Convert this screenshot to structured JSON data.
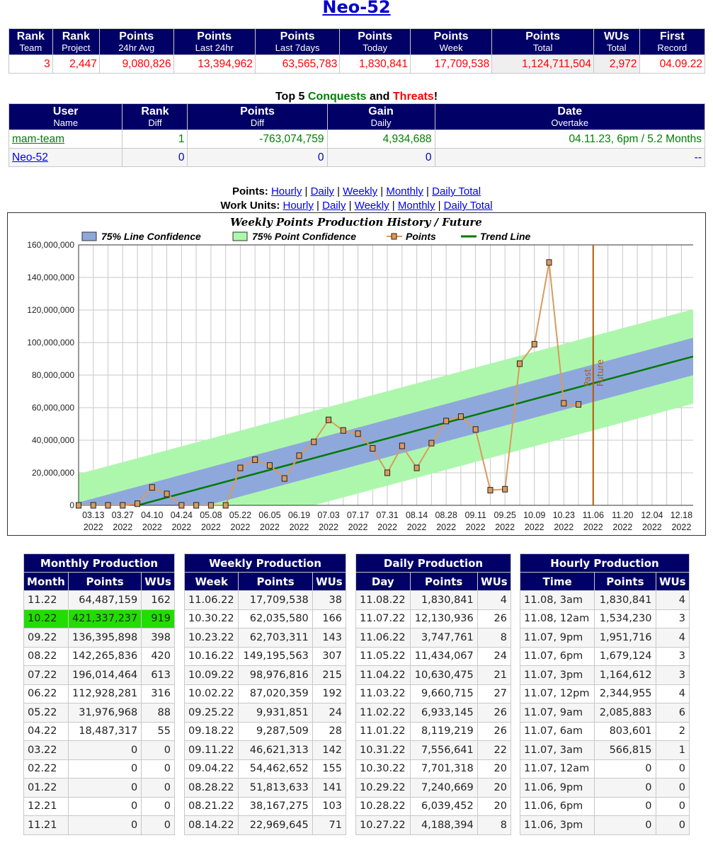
{
  "title": "Neo-52",
  "stats": {
    "headers": [
      [
        "Rank",
        "Team"
      ],
      [
        "Rank",
        "Project"
      ],
      [
        "Points",
        "24hr Avg"
      ],
      [
        "Points",
        "Last 24hr"
      ],
      [
        "Points",
        "Last 7days"
      ],
      [
        "Points",
        "Today"
      ],
      [
        "Points",
        "Week"
      ],
      [
        "Points",
        "Total"
      ],
      [
        "WUs",
        "Total"
      ],
      [
        "First",
        "Record"
      ]
    ],
    "values": [
      "3",
      "2,447",
      "9,080,826",
      "13,394,962",
      "63,565,783",
      "1,830,841",
      "17,709,538",
      "1,124,711,504",
      "2,972",
      "04.09.22"
    ]
  },
  "conquests": {
    "title": {
      "a": "Top 5 ",
      "b": "Conquests",
      "c": " and ",
      "d": "Threats",
      "e": "!"
    },
    "headers": [
      [
        "User",
        "Name"
      ],
      [
        "Rank",
        "Diff"
      ],
      [
        "Points",
        "Diff"
      ],
      [
        "Gain",
        "Daily"
      ],
      [
        "Date",
        "Overtake"
      ]
    ],
    "rows": [
      [
        "mam-team",
        "1",
        "-763,074,759",
        "4,934,688",
        "04.11.23, 6pm / 5.2 Months"
      ],
      [
        "Neo-52",
        "0",
        "0",
        "0",
        "--"
      ]
    ]
  },
  "links": {
    "points_label": "Points:",
    "wu_label": "Work Units:",
    "items": [
      "Hourly",
      "Daily",
      "Weekly",
      "Monthly",
      "Daily Total"
    ],
    "sep": "|"
  },
  "chart_data": {
    "type": "line",
    "title": "Weekly Points Production History / Future",
    "legend": [
      "75% Line Confidence",
      "75% Point Confidence",
      "Points",
      "Trend Line"
    ],
    "legend_position": "top",
    "ylim": [
      0,
      160000000
    ],
    "yticks": [
      "0",
      "20,000,000",
      "40,000,000",
      "60,000,000",
      "80,000,000",
      "100,000,000",
      "120,000,000",
      "140,000,000",
      "160,000,000"
    ],
    "xticks": [
      [
        "03.13",
        "2022"
      ],
      [
        "03.27",
        "2022"
      ],
      [
        "04.10",
        "2022"
      ],
      [
        "04.24",
        "2022"
      ],
      [
        "05.08",
        "2022"
      ],
      [
        "05.22",
        "2022"
      ],
      [
        "06.05",
        "2022"
      ],
      [
        "06.19",
        "2022"
      ],
      [
        "07.03",
        "2022"
      ],
      [
        "07.17",
        "2022"
      ],
      [
        "07.31",
        "2022"
      ],
      [
        "08.14",
        "2022"
      ],
      [
        "08.28",
        "2022"
      ],
      [
        "09.11",
        "2022"
      ],
      [
        "09.25",
        "2022"
      ],
      [
        "10.09",
        "2022"
      ],
      [
        "10.23",
        "2022"
      ],
      [
        "11.06",
        "2022"
      ],
      [
        "11.20",
        "2022"
      ],
      [
        "12.04",
        "2022"
      ],
      [
        "12.18",
        "2022"
      ]
    ],
    "x_weeks_from": "03.06.2022",
    "x_weeks_span": 41.8,
    "points_millions": [
      0,
      0,
      0,
      0,
      1,
      11,
      7,
      0,
      0,
      0,
      0,
      23,
      28,
      24.5,
      16.5,
      30.5,
      39,
      52.5,
      46,
      44,
      35,
      20,
      36.5,
      23,
      38.2,
      51.8,
      54.5,
      46.6,
      9.3,
      9.9,
      87.0,
      99.0,
      149.2,
      62.7,
      62.0
    ],
    "trend": {
      "intercept_millions": -9.7,
      "slope_millions_per_week": 2.42,
      "line_conf_millions": 11.5,
      "point_conf_millions": 29
    },
    "divider_week": 35,
    "divider_labels": [
      "Past",
      "Future"
    ],
    "colors": {
      "line_conf": "#8fa8dc",
      "point_conf": "#adf7ad",
      "points": "#d99a5e",
      "trend": "#007a00",
      "divider": "#b35900"
    }
  },
  "production": [
    {
      "title": "Monthly Production",
      "cols": [
        "Month",
        "Points",
        "WUs"
      ],
      "highlight": 1,
      "rows": [
        [
          "11.22",
          "64,487,159",
          "162"
        ],
        [
          "10.22",
          "421,337,237",
          "919"
        ],
        [
          "09.22",
          "136,395,898",
          "398"
        ],
        [
          "08.22",
          "142,265,836",
          "420"
        ],
        [
          "07.22",
          "196,014,464",
          "613"
        ],
        [
          "06.22",
          "112,928,281",
          "316"
        ],
        [
          "05.22",
          "31,976,968",
          "88"
        ],
        [
          "04.22",
          "18,487,317",
          "55"
        ],
        [
          "03.22",
          "0",
          "0"
        ],
        [
          "02.22",
          "0",
          "0"
        ],
        [
          "01.22",
          "0",
          "0"
        ],
        [
          "12.21",
          "0",
          "0"
        ],
        [
          "11.21",
          "0",
          "0"
        ]
      ]
    },
    {
      "title": "Weekly Production",
      "cols": [
        "Week",
        "Points",
        "WUs"
      ],
      "rows": [
        [
          "11.06.22",
          "17,709,538",
          "38"
        ],
        [
          "10.30.22",
          "62,035,580",
          "166"
        ],
        [
          "10.23.22",
          "62,703,311",
          "143"
        ],
        [
          "10.16.22",
          "149,195,563",
          "307"
        ],
        [
          "10.09.22",
          "98,976,816",
          "215"
        ],
        [
          "10.02.22",
          "87,020,359",
          "192"
        ],
        [
          "09.25.22",
          "9,931,851",
          "24"
        ],
        [
          "09.18.22",
          "9,287,509",
          "28"
        ],
        [
          "09.11.22",
          "46,621,313",
          "142"
        ],
        [
          "09.04.22",
          "54,462,652",
          "155"
        ],
        [
          "08.28.22",
          "51,813,633",
          "141"
        ],
        [
          "08.21.22",
          "38,167,275",
          "103"
        ],
        [
          "08.14.22",
          "22,969,645",
          "71"
        ]
      ]
    },
    {
      "title": "Daily Production",
      "cols": [
        "Day",
        "Points",
        "WUs"
      ],
      "rows": [
        [
          "11.08.22",
          "1,830,841",
          "4"
        ],
        [
          "11.07.22",
          "12,130,936",
          "26"
        ],
        [
          "11.06.22",
          "3,747,761",
          "8"
        ],
        [
          "11.05.22",
          "11,434,067",
          "24"
        ],
        [
          "11.04.22",
          "10,630,475",
          "21"
        ],
        [
          "11.03.22",
          "9,660,715",
          "27"
        ],
        [
          "11.02.22",
          "6,933,145",
          "26"
        ],
        [
          "11.01.22",
          "8,119,219",
          "26"
        ],
        [
          "10.31.22",
          "7,556,641",
          "22"
        ],
        [
          "10.30.22",
          "7,701,318",
          "20"
        ],
        [
          "10.29.22",
          "7,240,669",
          "20"
        ],
        [
          "10.28.22",
          "6,039,452",
          "20"
        ],
        [
          "10.27.22",
          "4,188,394",
          "8"
        ]
      ]
    },
    {
      "title": "Hourly Production",
      "cols": [
        "Time",
        "Points",
        "WUs"
      ],
      "rows": [
        [
          "11.08, 3am",
          "1,830,841",
          "4"
        ],
        [
          "11.08, 12am",
          "1,534,230",
          "3"
        ],
        [
          "11.07, 9pm",
          "1,951,716",
          "4"
        ],
        [
          "11.07, 6pm",
          "1,679,124",
          "3"
        ],
        [
          "11.07, 3pm",
          "1,164,612",
          "3"
        ],
        [
          "11.07, 12pm",
          "2,344,955",
          "4"
        ],
        [
          "11.07, 9am",
          "2,085,883",
          "6"
        ],
        [
          "11.07, 6am",
          "803,601",
          "2"
        ],
        [
          "11.07, 3am",
          "566,815",
          "1"
        ],
        [
          "11.07, 12am",
          "0",
          "0"
        ],
        [
          "11.06, 9pm",
          "0",
          "0"
        ],
        [
          "11.06, 6pm",
          "0",
          "0"
        ],
        [
          "11.06, 3pm",
          "0",
          "0"
        ]
      ]
    }
  ]
}
